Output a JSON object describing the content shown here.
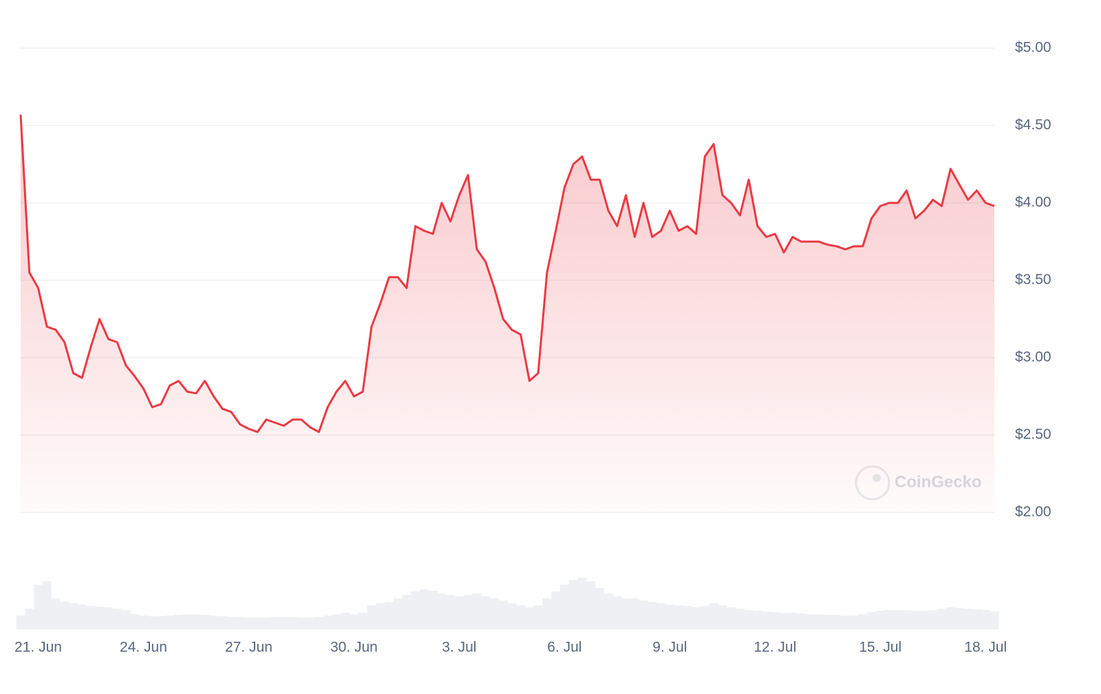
{
  "chart_data": [
    {
      "type": "line",
      "categories": [
        null,
        null,
        "21. Jun",
        null,
        null,
        null,
        null,
        null,
        null,
        null,
        null,
        null,
        null,
        null,
        "24. Jun",
        null,
        null,
        null,
        null,
        null,
        null,
        null,
        null,
        null,
        null,
        null,
        "27. Jun",
        null,
        null,
        null,
        null,
        null,
        null,
        null,
        null,
        null,
        null,
        null,
        "30. Jun",
        null,
        null,
        null,
        null,
        null,
        null,
        null,
        null,
        null,
        null,
        null,
        "3. Jul",
        null,
        null,
        null,
        null,
        null,
        null,
        null,
        null,
        null,
        null,
        null,
        "6. Jul",
        null,
        null,
        null,
        null,
        null,
        null,
        null,
        null,
        null,
        null,
        null,
        "9. Jul",
        null,
        null,
        null,
        null,
        null,
        null,
        null,
        null,
        null,
        null,
        null,
        "12. Jul",
        null,
        null,
        null,
        null,
        null,
        null,
        null,
        null,
        null,
        null,
        null,
        "15. Jul",
        null,
        null,
        null,
        null,
        null,
        null,
        null,
        null,
        null,
        null,
        null,
        "18. Jul",
        null
      ],
      "values": [
        4.57,
        3.55,
        3.45,
        3.2,
        3.18,
        3.1,
        2.9,
        2.87,
        3.07,
        3.25,
        3.12,
        3.1,
        2.95,
        2.88,
        2.8,
        2.68,
        2.7,
        2.82,
        2.85,
        2.78,
        2.77,
        2.85,
        2.75,
        2.67,
        2.65,
        2.57,
        2.54,
        2.52,
        2.6,
        2.58,
        2.56,
        2.6,
        2.6,
        2.55,
        2.52,
        2.68,
        2.78,
        2.85,
        2.75,
        2.78,
        3.2,
        3.35,
        3.52,
        3.52,
        3.45,
        3.85,
        3.82,
        3.8,
        4.0,
        3.88,
        4.05,
        4.18,
        3.7,
        3.62,
        3.45,
        3.25,
        3.18,
        3.15,
        2.85,
        2.9,
        3.55,
        3.82,
        4.1,
        4.25,
        4.3,
        4.15,
        4.15,
        3.95,
        3.85,
        4.05,
        3.78,
        4.0,
        3.78,
        3.82,
        3.95,
        3.82,
        3.85,
        3.8,
        4.3,
        4.38,
        4.05,
        4.0,
        3.92,
        4.15,
        3.85,
        3.78,
        3.8,
        3.68,
        3.78,
        3.75,
        3.75,
        3.75,
        3.73,
        3.72,
        3.7,
        3.72,
        3.72,
        3.9,
        3.98,
        4.0,
        4.0,
        4.08,
        3.9,
        3.95,
        4.02,
        3.98,
        4.22,
        4.12,
        4.02,
        4.08,
        4.0,
        3.98
      ],
      "color": "#ea3943",
      "ylim": [
        2,
        5
      ],
      "yticks": [
        {
          "value": 2,
          "label": "$2.00"
        },
        {
          "value": 2.5,
          "label": "$2.50"
        },
        {
          "value": 3,
          "label": "$3.00"
        },
        {
          "value": 3.5,
          "label": "$3.50"
        },
        {
          "value": 4,
          "label": "$4.00"
        },
        {
          "value": 4.5,
          "label": "$4.50"
        },
        {
          "value": 5,
          "label": "$5.00"
        }
      ],
      "grid": true,
      "watermark": "CoinGecko"
    },
    {
      "type": "bar",
      "values": [
        20,
        30,
        65,
        70,
        45,
        40,
        38,
        36,
        34,
        33,
        32,
        30,
        28,
        22,
        20,
        19,
        19,
        20,
        21,
        22,
        22,
        21,
        20,
        19,
        18,
        18,
        17,
        17,
        17,
        18,
        18,
        18,
        17,
        17,
        18,
        20,
        22,
        24,
        22,
        24,
        35,
        38,
        40,
        45,
        50,
        55,
        58,
        56,
        52,
        50,
        48,
        50,
        52,
        48,
        45,
        42,
        38,
        35,
        32,
        35,
        45,
        55,
        65,
        72,
        75,
        70,
        60,
        52,
        48,
        45,
        45,
        42,
        40,
        38,
        36,
        35,
        34,
        32,
        34,
        38,
        35,
        32,
        30,
        28,
        27,
        26,
        25,
        24,
        24,
        23,
        22,
        22,
        21,
        21,
        20,
        20,
        22,
        25,
        27,
        28,
        28,
        28,
        27,
        27,
        28,
        30,
        32,
        31,
        30,
        29,
        28,
        26
      ],
      "color": "#eef0f4",
      "ylim": [
        0,
        100
      ]
    }
  ]
}
